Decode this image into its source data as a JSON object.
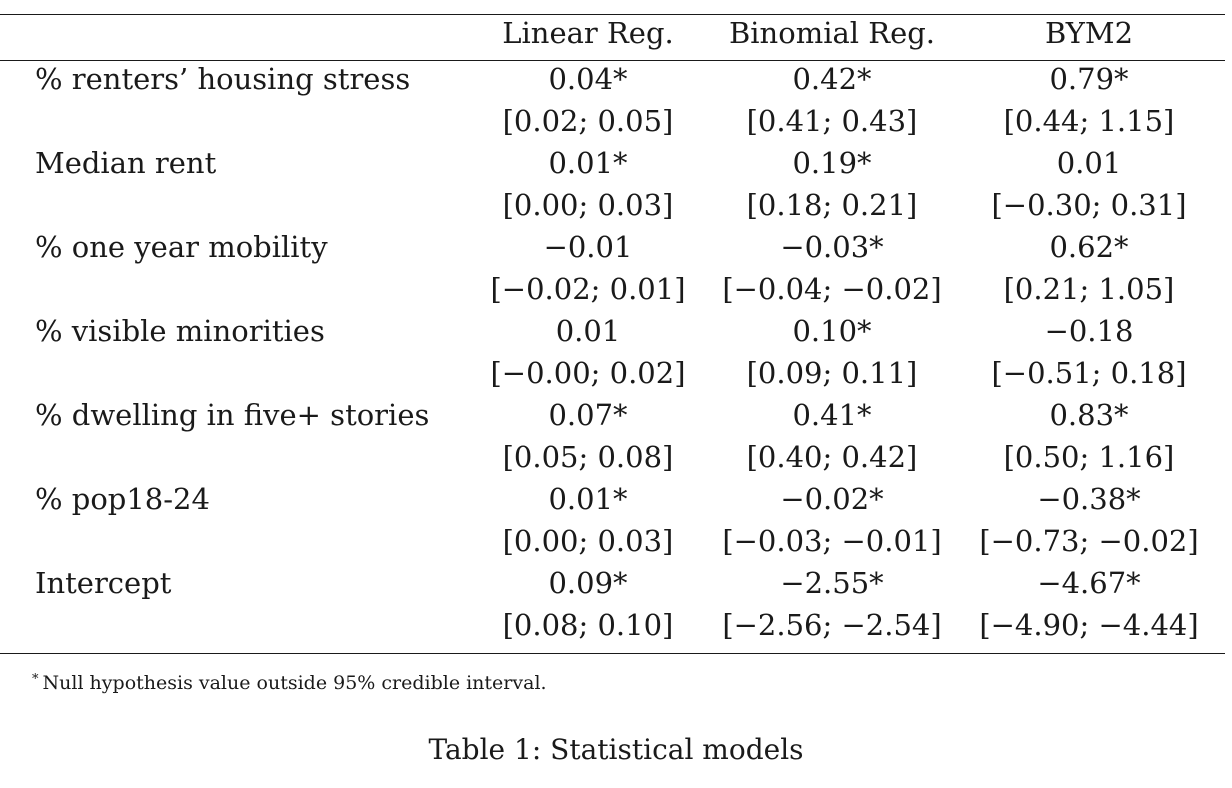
{
  "table": {
    "columns": [
      "",
      "Linear Reg.",
      "Binomial Reg.",
      "BYM2"
    ],
    "rows": [
      [
        "% renters’ housing stress",
        "0.04*",
        "0.42*",
        "0.79*"
      ],
      [
        "",
        "[0.02; 0.05]",
        "[0.41; 0.43]",
        "[0.44; 1.15]"
      ],
      [
        "Median rent",
        "0.01*",
        "0.19*",
        "0.01"
      ],
      [
        "",
        "[0.00; 0.03]",
        "[0.18; 0.21]",
        "[−0.30; 0.31]"
      ],
      [
        "% one year mobility",
        "−0.01",
        "−0.03*",
        "0.62*"
      ],
      [
        "",
        "[−0.02; 0.01]",
        "[−0.04; −0.02]",
        "[0.21; 1.05]"
      ],
      [
        "% visible minorities",
        "0.01",
        "0.10*",
        "−0.18"
      ],
      [
        "",
        "[−0.00; 0.02]",
        "[0.09; 0.11]",
        "[−0.51; 0.18]"
      ],
      [
        "% dwelling in five+ stories",
        "0.07*",
        "0.41*",
        "0.83*"
      ],
      [
        "",
        "[0.05; 0.08]",
        "[0.40; 0.42]",
        "[0.50; 1.16]"
      ],
      [
        "% pop18-24",
        "0.01*",
        "−0.02*",
        "−0.38*"
      ],
      [
        "",
        "[0.00; 0.03]",
        "[−0.03; −0.01]",
        "[−0.73; −0.02]"
      ],
      [
        "Intercept",
        "0.09*",
        "−2.55*",
        "−4.67*"
      ],
      [
        "",
        "[0.08; 0.10]",
        "[−2.56; −2.54]",
        "[−4.90; −4.44]"
      ]
    ]
  },
  "footnote": {
    "marker": "*",
    "text": "Null hypothesis value outside 95% credible interval."
  },
  "caption": "Table 1: Statistical models"
}
